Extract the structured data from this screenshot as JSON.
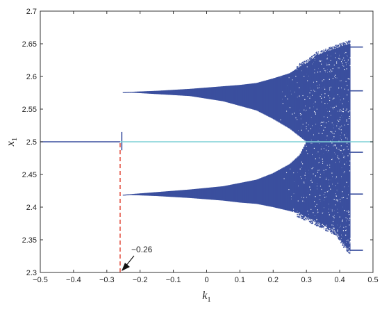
{
  "chart_data": {
    "type": "scatter",
    "title": "",
    "xlabel": {
      "symbol": "k",
      "subscript": "1"
    },
    "ylabel": {
      "symbol": "x",
      "subscript": "1"
    },
    "xlim": [
      -0.5,
      0.5
    ],
    "ylim": [
      2.3,
      2.7
    ],
    "x_ticks": [
      -0.5,
      -0.4,
      -0.3,
      -0.2,
      -0.1,
      0,
      0.1,
      0.2,
      0.3,
      0.4,
      0.5
    ],
    "x_tick_labels": [
      "−0.5",
      "−0.4",
      "−0.3",
      "−0.2",
      "−0.1",
      "0",
      "0.1",
      "0.2",
      "0.3",
      "0.4",
      "0.5"
    ],
    "y_ticks": [
      2.3,
      2.35,
      2.4,
      2.45,
      2.5,
      2.55,
      2.6,
      2.65,
      2.7
    ],
    "y_tick_labels": [
      "2.3",
      "2.35",
      "2.4",
      "2.45",
      "2.5",
      "2.55",
      "2.6",
      "2.65",
      "2.7"
    ],
    "grid": false,
    "colors": {
      "points": "#3a4f9e",
      "reference_line": "#7fd0d6",
      "marker_line": "#e03a2a"
    },
    "reference_line": {
      "y": 2.5
    },
    "marker_line": {
      "x": -0.26,
      "y_from": 2.3,
      "y_to": 2.5
    },
    "annotation": {
      "text": "−0.26",
      "arrow_to": {
        "x": -0.26,
        "y": 2.3
      }
    },
    "series": [
      {
        "regime": "fixed-point",
        "x_range": [
          -0.5,
          -0.26
        ],
        "points": [
          [
            -0.5,
            2.5
          ],
          [
            -0.4,
            2.5
          ],
          [
            -0.3,
            2.5
          ],
          [
            -0.26,
            2.5
          ]
        ]
      },
      {
        "regime": "period-2-upper",
        "x_range": [
          -0.25,
          0.25
        ],
        "points": [
          [
            -0.25,
            2.576
          ],
          [
            -0.1,
            2.575
          ],
          [
            0,
            2.574
          ],
          [
            0.1,
            2.573
          ],
          [
            0.15,
            2.573
          ],
          [
            0.2,
            2.572
          ]
        ]
      },
      {
        "regime": "period-2-lower",
        "x_range": [
          -0.25,
          0.25
        ],
        "points": [
          [
            -0.25,
            2.419
          ],
          [
            -0.1,
            2.421
          ],
          [
            0,
            2.423
          ],
          [
            0.1,
            2.425
          ],
          [
            0.2,
            2.428
          ]
        ]
      },
      {
        "regime": "chaotic-envelope",
        "columns": [
          {
            "x": -0.25,
            "upper": [
              2.576,
              2.576
            ],
            "lower": [
              2.419,
              2.419
            ]
          },
          {
            "x": -0.15,
            "upper": [
              2.573,
              2.578
            ],
            "lower": [
              2.417,
              2.423
            ]
          },
          {
            "x": -0.05,
            "upper": [
              2.57,
              2.581
            ],
            "lower": [
              2.414,
              2.427
            ]
          },
          {
            "x": 0.05,
            "upper": [
              2.562,
              2.585
            ],
            "lower": [
              2.41,
              2.432
            ]
          },
          {
            "x": 0.1,
            "upper": [
              2.555,
              2.587
            ],
            "lower": [
              2.407,
              2.437
            ]
          },
          {
            "x": 0.15,
            "upper": [
              2.548,
              2.59
            ],
            "lower": [
              2.405,
              2.442
            ]
          },
          {
            "x": 0.2,
            "upper": [
              2.535,
              2.597
            ],
            "lower": [
              2.4,
              2.452
            ]
          },
          {
            "x": 0.25,
            "upper": [
              2.52,
              2.605
            ],
            "lower": [
              2.394,
              2.466
            ]
          },
          {
            "x": 0.28,
            "upper": [
              2.508,
              2.615
            ],
            "lower": [
              2.39,
              2.48
            ]
          },
          {
            "x": 0.3,
            "upper": [
              2.5,
              2.62
            ],
            "lower": [
              2.385,
              2.5
            ]
          },
          {
            "x": 0.33,
            "upper": [
              2.5,
              2.632
            ],
            "lower": [
              2.378,
              2.5
            ]
          },
          {
            "x": 0.36,
            "upper": [
              2.5,
              2.638
            ],
            "lower": [
              2.37,
              2.5
            ]
          },
          {
            "x": 0.39,
            "upper": [
              2.5,
              2.643
            ],
            "lower": [
              2.363,
              2.5
            ]
          },
          {
            "x": 0.41,
            "upper": [
              2.5,
              2.647
            ],
            "lower": [
              2.345,
              2.5
            ]
          },
          {
            "x": 0.43,
            "upper": [
              2.5,
              2.65
            ],
            "lower": [
              2.334,
              2.5
            ]
          }
        ]
      },
      {
        "regime": "periodic-window",
        "x_range": [
          0.43,
          0.47
        ],
        "y_values": [
          2.645,
          2.578,
          2.484,
          2.42,
          2.334
        ]
      }
    ]
  }
}
